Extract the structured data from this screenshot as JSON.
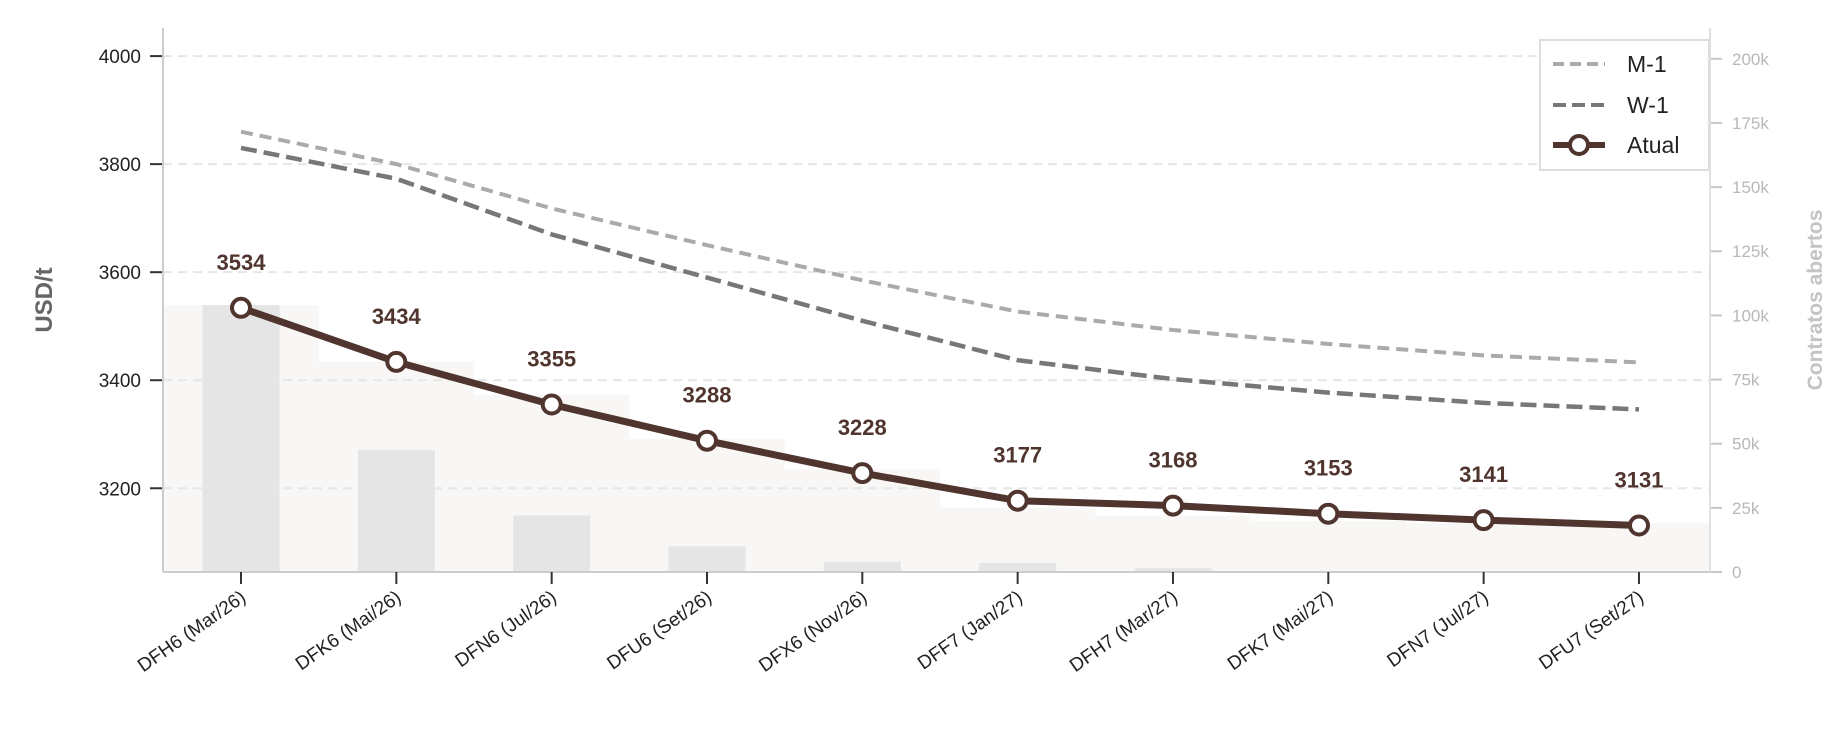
{
  "chart_data": {
    "type": "line",
    "categories": [
      "DFH6 (Mar/26)",
      "DFK6 (Mai/26)",
      "DFN6 (Jul/26)",
      "DFU6 (Set/26)",
      "DFX6 (Nov/26)",
      "DFF7 (Jan/27)",
      "DFH7 (Mar/27)",
      "DFK7 (Mai/27)",
      "DFN7 (Jul/27)",
      "DFU7 (Set/27)"
    ],
    "series": [
      {
        "name": "M-1",
        "values": [
          3860,
          3800,
          3718,
          3650,
          3585,
          3527,
          3493,
          3467,
          3446,
          3433
        ],
        "style": "dashed-light",
        "color": "#aaaaaa"
      },
      {
        "name": "W-1",
        "values": [
          3830,
          3773,
          3670,
          3590,
          3510,
          3437,
          3402,
          3377,
          3358,
          3346
        ],
        "style": "dashed",
        "color": "#777777"
      },
      {
        "name": "Atual",
        "values": [
          3534,
          3434,
          3355,
          3288,
          3228,
          3177,
          3168,
          3153,
          3141,
          3131
        ],
        "style": "solid-markers",
        "color": "#50342e"
      }
    ],
    "data_labels": [
      "3534",
      "3434",
      "3355",
      "3288",
      "3228",
      "3177",
      "3168",
      "3153",
      "3141",
      "3131"
    ],
    "bars": {
      "name": "Contratos abertos",
      "values": [
        104000,
        47500,
        22000,
        10000,
        4000,
        3500,
        1500,
        0,
        0,
        0
      ],
      "color": "#e5e5e5"
    },
    "area": {
      "name": "Contratos abertos",
      "values": [
        104000,
        82000,
        69000,
        52000,
        40000,
        25000,
        22000,
        20000,
        19000,
        19000
      ],
      "color": "#f8f7f5"
    },
    "ylabel": "USD/t",
    "ylabel_right": "Contratos abertos",
    "ylim": [
      3045,
      4052
    ],
    "ylim_right": [
      0,
      212000
    ],
    "yticks": [
      "3200",
      "3400",
      "3600",
      "3800",
      "4000"
    ],
    "yticks_right": [
      "0",
      "25k",
      "50k",
      "75k",
      "100k",
      "125k",
      "150k",
      "175k",
      "200k"
    ],
    "grid": "horizontal-dashed",
    "legend": {
      "position": "top-right",
      "entries": [
        "M-1",
        "W-1",
        "Atual"
      ]
    }
  }
}
